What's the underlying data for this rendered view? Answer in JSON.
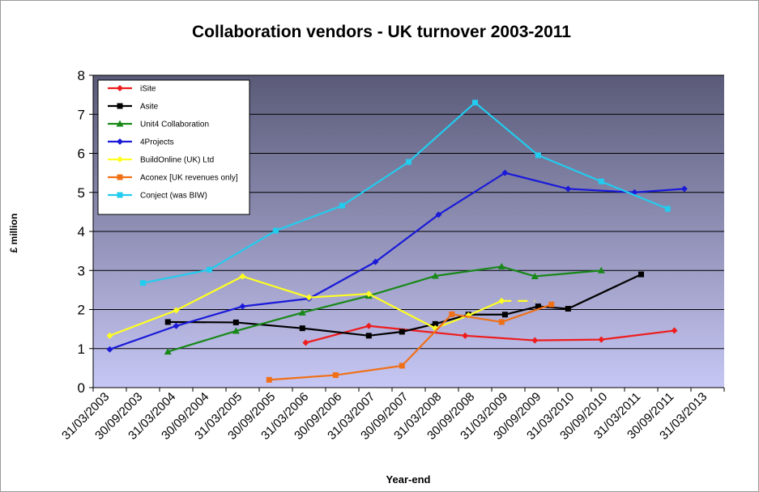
{
  "chart_data": {
    "type": "line",
    "title": "Collaboration vendors - UK turnover 2003-2011",
    "xlabel": "Year-end",
    "ylabel": "£ million",
    "ylim": [
      0,
      8
    ],
    "yticks": [
      "0",
      "1",
      "2",
      "3",
      "4",
      "5",
      "6",
      "7",
      "8"
    ],
    "categories": [
      "31/03/2003",
      "30/09/2003",
      "31/03/2004",
      "30/09/2004",
      "31/03/2005",
      "30/09/2005",
      "31/03/2006",
      "30/09/2006",
      "31/03/2007",
      "30/09/2007",
      "31/03/2008",
      "30/09/2008",
      "31/03/2009",
      "30/09/2009",
      "31/03/2010",
      "30/09/2010",
      "31/03/2011",
      "30/09/2011",
      "31/03/2013"
    ],
    "grid": "horizontal",
    "legend_position": "top-left",
    "background_gradient": [
      "#5a5a78",
      "#c7c7f5"
    ],
    "series": [
      {
        "name": "iSite",
        "color": "#ee1c1c",
        "marker": "diamond",
        "points": [
          [
            5.9,
            1.15
          ],
          [
            7.8,
            1.58
          ],
          [
            10.7,
            1.33
          ],
          [
            12.8,
            1.21
          ],
          [
            14.8,
            1.23
          ],
          [
            17.0,
            1.46
          ]
        ]
      },
      {
        "name": "Asite",
        "color": "#000000",
        "marker": "square",
        "points": [
          [
            1.75,
            1.68
          ],
          [
            3.8,
            1.67
          ],
          [
            5.8,
            1.52
          ],
          [
            7.8,
            1.33
          ],
          [
            8.8,
            1.43
          ],
          [
            9.8,
            1.63
          ],
          [
            10.8,
            1.87
          ],
          [
            11.9,
            1.87
          ],
          [
            12.9,
            2.08
          ],
          [
            13.8,
            2.02
          ],
          [
            16.0,
            2.9
          ]
        ]
      },
      {
        "name": "Unit4 Collaboration",
        "color": "#188818",
        "marker": "triangle",
        "points": [
          [
            1.75,
            0.92
          ],
          [
            3.8,
            1.45
          ],
          [
            5.8,
            1.92
          ],
          [
            7.8,
            2.35
          ],
          [
            9.8,
            2.86
          ],
          [
            11.8,
            3.1
          ],
          [
            12.8,
            2.85
          ],
          [
            14.8,
            3.0
          ]
        ]
      },
      {
        "name": "4Projects",
        "color": "#1a1ad8",
        "marker": "diamond",
        "points": [
          [
            0.0,
            0.98
          ],
          [
            2.0,
            1.58
          ],
          [
            4.0,
            2.08
          ],
          [
            6.0,
            2.28
          ],
          [
            8.0,
            3.22
          ],
          [
            9.9,
            4.43
          ],
          [
            11.9,
            5.5
          ],
          [
            13.8,
            5.09
          ],
          [
            15.8,
            5.0
          ],
          [
            17.3,
            5.09
          ]
        ]
      },
      {
        "name": "BuildOnline (UK) Ltd",
        "color": "#ffff22",
        "marker": "diamond",
        "points": [
          [
            0.0,
            1.33
          ],
          [
            2.0,
            1.98
          ],
          [
            4.0,
            2.85
          ],
          [
            6.0,
            2.31
          ],
          [
            7.8,
            2.4
          ],
          [
            9.8,
            1.52
          ],
          [
            10.8,
            1.85
          ],
          [
            11.8,
            2.22
          ],
          [
            12.8,
            2.22
          ]
        ],
        "dashed_from_index": 7
      },
      {
        "name": "Aconex [UK revenues only]",
        "color": "#f07018",
        "marker": "square",
        "points": [
          [
            4.8,
            0.2
          ],
          [
            6.8,
            0.32
          ],
          [
            8.8,
            0.56
          ],
          [
            10.3,
            1.88
          ],
          [
            11.8,
            1.68
          ],
          [
            13.3,
            2.13
          ]
        ]
      },
      {
        "name": "Conject (was BIW)",
        "color": "#22ccee",
        "marker": "square",
        "points": [
          [
            1.0,
            2.68
          ],
          [
            3.0,
            3.02
          ],
          [
            5.0,
            4.02
          ],
          [
            7.0,
            4.66
          ],
          [
            9.0,
            5.78
          ],
          [
            11.0,
            7.3
          ],
          [
            12.9,
            5.95
          ],
          [
            14.8,
            5.28
          ],
          [
            16.8,
            4.58
          ]
        ]
      }
    ]
  }
}
